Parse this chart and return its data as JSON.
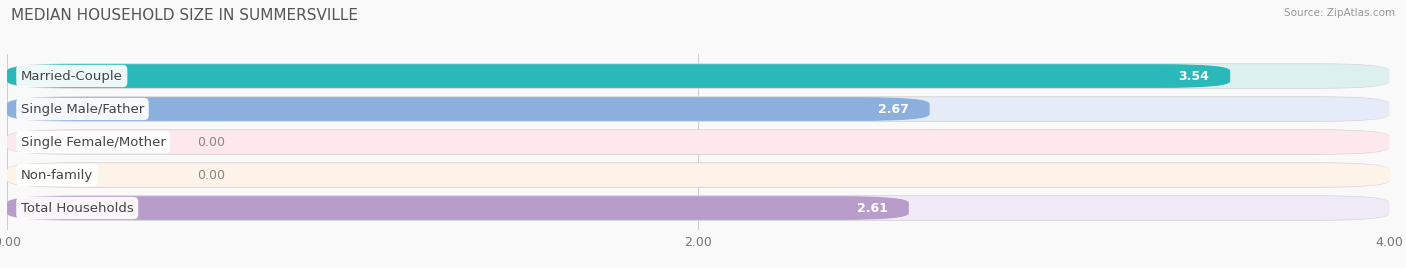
{
  "title": "MEDIAN HOUSEHOLD SIZE IN SUMMERSVILLE",
  "source": "Source: ZipAtlas.com",
  "categories": [
    "Married-Couple",
    "Single Male/Father",
    "Single Female/Mother",
    "Non-family",
    "Total Households"
  ],
  "values": [
    3.54,
    2.67,
    0.0,
    0.0,
    2.61
  ],
  "bar_colors": [
    "#2ab8b8",
    "#8bb0de",
    "#f389a5",
    "#f5c897",
    "#b89dca"
  ],
  "bg_colors": [
    "#ddf0f0",
    "#e5ecf8",
    "#fce8ed",
    "#fdf3e7",
    "#f0eaf6"
  ],
  "bg_border_colors": [
    "#c8e8e8",
    "#d0dff0",
    "#f0d0d8",
    "#ede0c8",
    "#ddd0e8"
  ],
  "xlim": [
    0,
    4.0
  ],
  "xticks": [
    0.0,
    2.0,
    4.0
  ],
  "xtick_labels": [
    "0.00",
    "2.00",
    "4.00"
  ],
  "title_fontsize": 11,
  "label_fontsize": 9.5,
  "value_fontsize": 9,
  "background_color": "#f9f9f9"
}
